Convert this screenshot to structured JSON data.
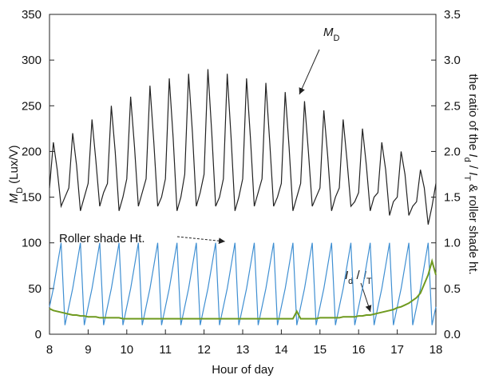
{
  "chart_data": {
    "type": "line",
    "x_label": "Hour of day",
    "y_label": [
      {
        "text": "M",
        "italic": true
      },
      {
        "text": "D",
        "sub": true
      },
      {
        "text": " (Lux/V)"
      }
    ],
    "y2_label": [
      {
        "text": "the ratio of the "
      },
      {
        "text": "I",
        "italic": true
      },
      {
        "text": "d",
        "sub": true
      },
      {
        "text": " / "
      },
      {
        "text": "I",
        "italic": true
      },
      {
        "text": "T",
        "sub": true
      },
      {
        "text": " & roller shade ht."
      }
    ],
    "annotations": {
      "md": [
        {
          "text": "M",
          "italic": true
        },
        {
          "text": "D",
          "sub": true
        }
      ],
      "shade": [
        {
          "text": "Roller shade Ht."
        }
      ],
      "ratio": [
        {
          "text": "I",
          "italic": true
        },
        {
          "text": "d",
          "sub": true
        },
        {
          "text": " / "
        },
        {
          "text": "I",
          "italic": true
        },
        {
          "text": "T",
          "sub": true
        }
      ]
    },
    "xlim": [
      8,
      18
    ],
    "xticks": [
      8,
      9,
      10,
      11,
      12,
      13,
      14,
      15,
      16,
      17,
      18
    ],
    "ylim": [
      0,
      350
    ],
    "yticks": [
      0,
      50,
      100,
      150,
      200,
      250,
      300,
      350
    ],
    "y2lim": [
      0,
      3.5
    ],
    "y2ticks": [
      {
        "value": 0,
        "label": "0.0"
      },
      0.5,
      {
        "value": 1,
        "label": "1.0"
      },
      1.5,
      {
        "value": 2,
        "label": "2.0"
      },
      2.5,
      {
        "value": 3,
        "label": "3.0"
      },
      3.5
    ],
    "x": [
      8,
      8.1,
      8.2,
      8.3,
      8.4,
      8.5,
      8.6,
      8.7,
      8.8,
      8.9,
      9,
      9.1,
      9.2,
      9.3,
      9.4,
      9.5,
      9.6,
      9.7,
      9.8,
      9.9,
      10,
      10.1,
      10.2,
      10.3,
      10.4,
      10.5,
      10.6,
      10.7,
      10.8,
      10.9,
      11,
      11.1,
      11.2,
      11.3,
      11.4,
      11.5,
      11.6,
      11.7,
      11.8,
      11.9,
      12,
      12.1,
      12.2,
      12.3,
      12.4,
      12.5,
      12.6,
      12.7,
      12.8,
      12.9,
      13,
      13.1,
      13.2,
      13.3,
      13.4,
      13.5,
      13.6,
      13.7,
      13.8,
      13.9,
      14,
      14.1,
      14.2,
      14.3,
      14.4,
      14.5,
      14.6,
      14.7,
      14.8,
      14.9,
      15,
      15.1,
      15.2,
      15.3,
      15.4,
      15.5,
      15.6,
      15.7,
      15.8,
      15.9,
      16,
      16.1,
      16.2,
      16.3,
      16.4,
      16.5,
      16.6,
      16.7,
      16.8,
      16.9,
      17,
      17.1,
      17.2,
      17.3,
      17.4,
      17.5,
      17.6,
      17.7,
      17.8,
      17.9,
      18
    ],
    "series": [
      {
        "color": "#222222",
        "values": [
          160,
          210,
          180,
          140,
          150,
          160,
          220,
          185,
          135,
          150,
          165,
          235,
          190,
          140,
          155,
          165,
          250,
          200,
          135,
          150,
          170,
          260,
          205,
          140,
          155,
          170,
          272,
          210,
          140,
          150,
          170,
          280,
          215,
          135,
          150,
          175,
          285,
          220,
          140,
          155,
          175,
          290,
          220,
          140,
          150,
          170,
          285,
          215,
          135,
          150,
          170,
          280,
          215,
          140,
          155,
          170,
          275,
          210,
          140,
          150,
          165,
          265,
          205,
          135,
          150,
          165,
          255,
          200,
          140,
          150,
          160,
          245,
          195,
          135,
          150,
          160,
          235,
          190,
          140,
          145,
          155,
          225,
          185,
          135,
          150,
          155,
          210,
          180,
          130,
          145,
          150,
          200,
          175,
          130,
          140,
          145,
          180,
          160,
          120,
          140,
          165
        ]
      },
      {
        "color": "#3f8fd2",
        "axis": "y2",
        "values": [
          0.3,
          0.5,
          0.75,
          1,
          0.1,
          0.3,
          0.5,
          0.75,
          1,
          0.1,
          0.3,
          0.5,
          0.75,
          1,
          0.1,
          0.3,
          0.5,
          0.75,
          1,
          0.1,
          0.3,
          0.5,
          0.75,
          1,
          0.1,
          0.3,
          0.5,
          0.75,
          1,
          0.1,
          0.3,
          0.5,
          0.75,
          1,
          0.1,
          0.3,
          0.5,
          0.75,
          1,
          0.1,
          0.3,
          0.5,
          0.75,
          1,
          0.1,
          0.3,
          0.5,
          0.75,
          1,
          0.1,
          0.3,
          0.5,
          0.75,
          1,
          0.1,
          0.3,
          0.5,
          0.75,
          1,
          0.1,
          0.3,
          0.5,
          0.75,
          1,
          0.1,
          0.3,
          0.5,
          0.75,
          1,
          0.1,
          0.3,
          0.5,
          0.75,
          1,
          0.1,
          0.3,
          0.5,
          0.75,
          1,
          0.1,
          0.3,
          0.5,
          0.75,
          1,
          0.1,
          0.3,
          0.5,
          0.75,
          1,
          0.1,
          0.3,
          0.5,
          0.75,
          1,
          0.1,
          0.3,
          0.5,
          0.75,
          1,
          0.1,
          0.3
        ]
      },
      {
        "color": "#6f9a1f",
        "axis": "y2",
        "values": [
          0.28,
          0.26,
          0.25,
          0.24,
          0.23,
          0.22,
          0.21,
          0.21,
          0.2,
          0.2,
          0.19,
          0.19,
          0.19,
          0.18,
          0.18,
          0.18,
          0.18,
          0.18,
          0.18,
          0.17,
          0.17,
          0.17,
          0.17,
          0.17,
          0.17,
          0.17,
          0.17,
          0.17,
          0.17,
          0.17,
          0.17,
          0.17,
          0.17,
          0.17,
          0.17,
          0.17,
          0.17,
          0.17,
          0.17,
          0.17,
          0.17,
          0.17,
          0.17,
          0.17,
          0.17,
          0.17,
          0.17,
          0.17,
          0.17,
          0.17,
          0.17,
          0.17,
          0.17,
          0.17,
          0.17,
          0.17,
          0.17,
          0.17,
          0.17,
          0.17,
          0.17,
          0.17,
          0.17,
          0.17,
          0.25,
          0.17,
          0.17,
          0.17,
          0.17,
          0.17,
          0.18,
          0.18,
          0.18,
          0.18,
          0.18,
          0.18,
          0.19,
          0.19,
          0.19,
          0.19,
          0.2,
          0.2,
          0.21,
          0.21,
          0.22,
          0.23,
          0.24,
          0.25,
          0.26,
          0.27,
          0.29,
          0.3,
          0.32,
          0.34,
          0.37,
          0.4,
          0.45,
          0.55,
          0.65,
          0.8,
          0.65
        ]
      }
    ]
  }
}
